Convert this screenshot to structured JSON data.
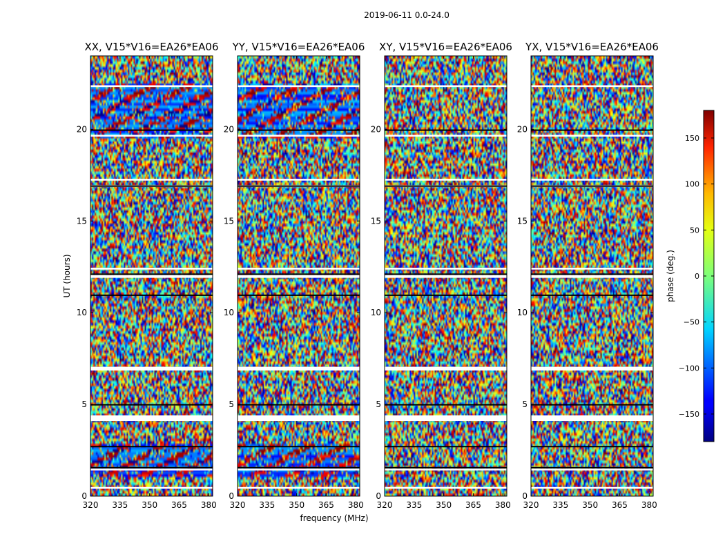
{
  "figure": {
    "suptitle": "2019-06-11 0.0-24.0"
  },
  "chart_data": {
    "type": "heatmap",
    "quantity": "visibility phase",
    "x_label": "frequency (MHz)",
    "y_label": "UT (hours)",
    "xlim": [
      320,
      382
    ],
    "ylim": [
      0,
      24
    ],
    "x_ticks": [
      320,
      335,
      350,
      365,
      380
    ],
    "y_ticks": [
      0,
      5,
      10,
      15,
      20
    ],
    "panels": [
      {
        "title": "XX, V15*V16=EA26*EA06",
        "polarization": "XX"
      },
      {
        "title": "YY, V15*V16=EA26*EA06",
        "polarization": "YY"
      },
      {
        "title": "XY, V15*V16=EA26*EA06",
        "polarization": "XY"
      },
      {
        "title": "YX, V15*V16=EA26*EA06",
        "polarization": "YX"
      }
    ],
    "colorbar": {
      "label": "phase (deg.)",
      "range": [
        -180,
        180
      ],
      "ticks": [
        -150,
        -100,
        -50,
        0,
        50,
        100,
        150
      ],
      "tick_labels": [
        "−150",
        "−100",
        "−50",
        "0",
        "50",
        "100",
        "150"
      ],
      "colormap": "jet"
    },
    "blank_ut_bands": [
      [
        0.4,
        0.5
      ],
      [
        1.4,
        1.5
      ],
      [
        4.1,
        4.4
      ],
      [
        6.85,
        7.05
      ],
      [
        11.9,
        12.05
      ],
      [
        12.35,
        12.45
      ],
      [
        16.85,
        16.95
      ],
      [
        17.2,
        17.3
      ],
      [
        19.6,
        19.7
      ],
      [
        22.3,
        22.4
      ]
    ],
    "dark_ut_lines": [
      1.55,
      2.7,
      4.98,
      10.95,
      12.1,
      16.9,
      19.95
    ],
    "coherent_phase_ut_ranges": {
      "XX": [
        [
          1.0,
          2.8
        ],
        [
          19.5,
          22.5
        ]
      ],
      "YY": [
        [
          1.0,
          2.8
        ],
        [
          19.5,
          22.5
        ]
      ]
    }
  }
}
